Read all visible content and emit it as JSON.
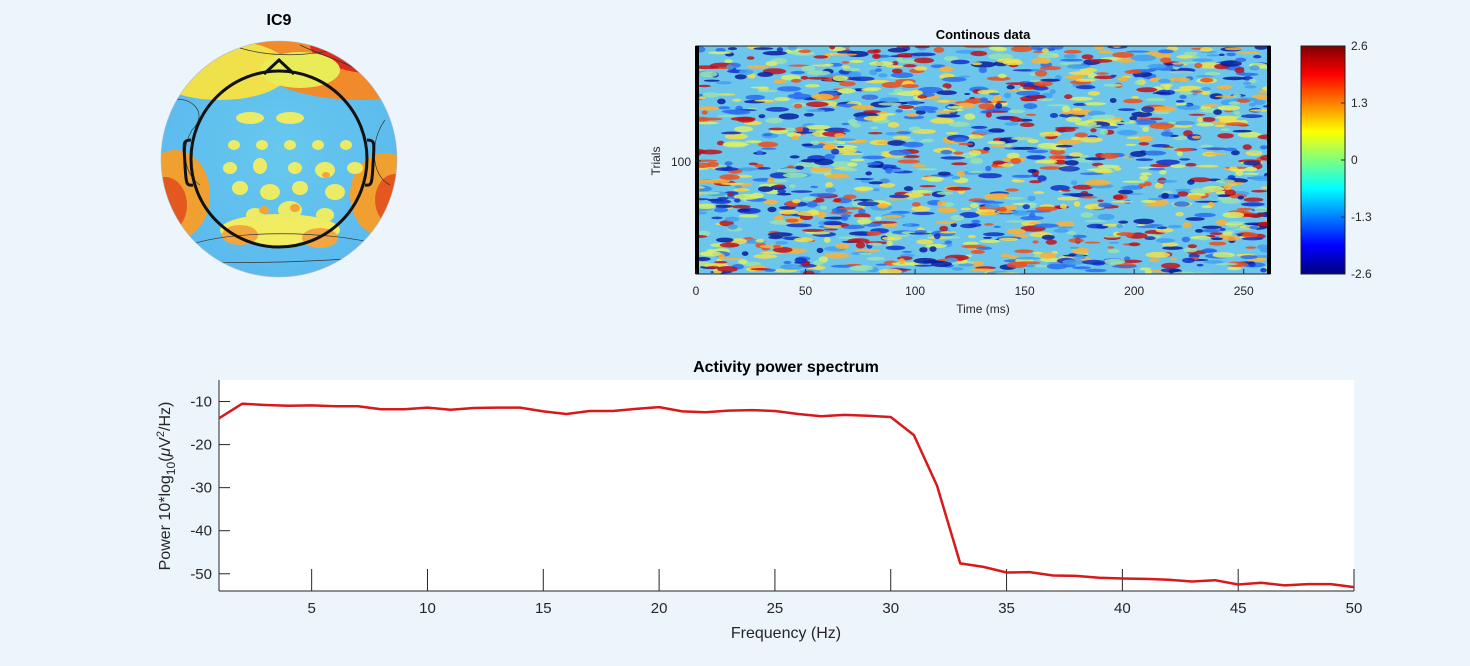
{
  "colors": {
    "figure_background": "#ecf4fc",
    "axes_background": "#ffffff",
    "spectrum_line": "#d7191c",
    "colormap": "jet"
  },
  "chart_data": [
    {
      "type": "heatmap",
      "subtype": "scalp-topography",
      "title": "IC9",
      "colormap": "jet",
      "head_outline": true,
      "contour_lines": true
    },
    {
      "type": "heatmap",
      "title": "Continous data",
      "xlabel": "Time (ms)",
      "ylabel": "Trials",
      "xlim": [
        0,
        262
      ],
      "x_ticks": [
        "0",
        "50",
        "100",
        "150",
        "200",
        "250"
      ],
      "y_ticks": [
        "100"
      ],
      "colorbar": {
        "colormap": "jet",
        "limits": [
          -2.6,
          2.6
        ],
        "tick_labels": [
          "2.6",
          "1.3",
          "0",
          "-1.3",
          "-2.6"
        ]
      }
    },
    {
      "type": "line",
      "title": "Activity power spectrum",
      "xlabel": "Frequency (Hz)",
      "ylabel_prefix": "Power 10*log",
      "ylabel_sub": "10",
      "ylabel_mid": "(",
      "ylabel_mu": "μ",
      "ylabel_mid2": "V",
      "ylabel_sup": "2",
      "ylabel_suffix": "/Hz)",
      "xlim": [
        1,
        50
      ],
      "ylim": [
        -54,
        -5
      ],
      "x_ticks": [
        "5",
        "10",
        "15",
        "20",
        "25",
        "30",
        "35",
        "40",
        "45",
        "50"
      ],
      "y_ticks": [
        "-10",
        "-20",
        "-30",
        "-40",
        "-50"
      ],
      "series": [
        {
          "x": [
            1,
            2,
            3,
            4,
            5,
            6,
            7,
            8,
            9,
            10,
            11,
            12,
            13,
            14,
            15,
            16,
            17,
            18,
            19,
            20,
            21,
            22,
            23,
            24,
            25,
            26,
            27,
            28,
            29,
            30,
            31,
            32,
            33,
            34,
            35,
            36,
            37,
            38,
            39,
            40,
            41,
            42,
            43,
            44,
            45,
            46,
            47,
            48,
            49,
            50
          ],
          "y": [
            -13.9,
            -10.5,
            -10.8,
            -11.0,
            -10.9,
            -11.1,
            -11.1,
            -11.8,
            -11.8,
            -11.4,
            -11.9,
            -11.5,
            -11.4,
            -11.4,
            -12.3,
            -12.9,
            -12.2,
            -12.2,
            -11.7,
            -11.3,
            -12.3,
            -12.5,
            -12.1,
            -12.0,
            -12.2,
            -12.9,
            -13.4,
            -13.1,
            -13.3,
            -13.6,
            -17.8,
            -29.6,
            -47.6,
            -48.4,
            -49.7,
            -49.6,
            -50.4,
            -50.5,
            -50.9,
            -51.1,
            -51.2,
            -51.4,
            -51.8,
            -51.5,
            -52.5,
            -52.1,
            -52.7,
            -52.4,
            -52.4,
            -53.1
          ]
        }
      ]
    }
  ]
}
